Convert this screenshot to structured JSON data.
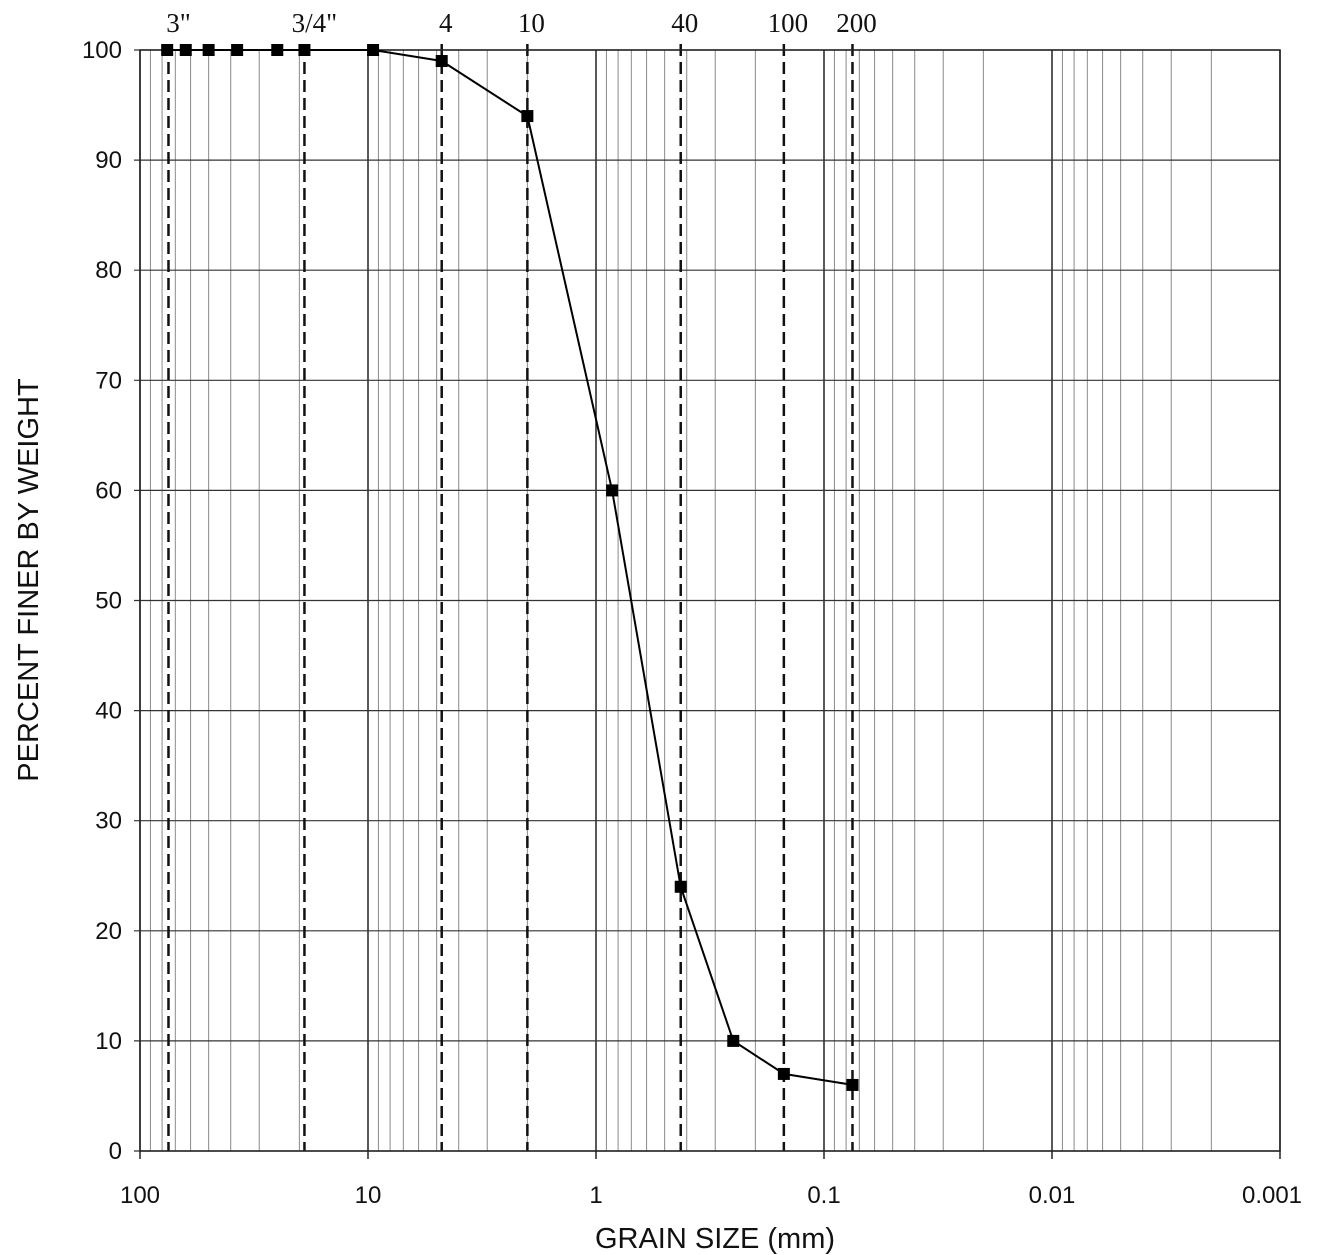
{
  "chart_data": {
    "type": "line",
    "title": "",
    "xlabel": "GRAIN SIZE (mm)",
    "ylabel": "PERCENT FINER BY WEIGHT",
    "x_scale": "log",
    "x_reversed": true,
    "xlim": [
      100,
      0.001
    ],
    "ylim": [
      0,
      100
    ],
    "x_ticks": [
      {
        "value": 100,
        "label": "100"
      },
      {
        "value": 10,
        "label": "10"
      },
      {
        "value": 1,
        "label": "1"
      },
      {
        "value": 0.1,
        "label": "0.1"
      },
      {
        "value": 0.01,
        "label": "0.01"
      },
      {
        "value": 0.001,
        "label": "0.001"
      }
    ],
    "y_ticks": [
      0,
      10,
      20,
      30,
      40,
      50,
      60,
      70,
      80,
      90,
      100
    ],
    "grid": true,
    "sieves": [
      {
        "label": "3\"",
        "size": 75
      },
      {
        "label": "3/4\"",
        "size": 19
      },
      {
        "label": "4",
        "size": 4.75
      },
      {
        "label": "10",
        "size": 2.0
      },
      {
        "label": "40",
        "size": 0.425
      },
      {
        "label": "100",
        "size": 0.15
      },
      {
        "label": "200",
        "size": 0.075
      }
    ],
    "series": [
      {
        "x": [
          76,
          63,
          50,
          37.5,
          25,
          19,
          9.5,
          4.75,
          2.0,
          0.85,
          0.425,
          0.25,
          0.15,
          0.075
        ],
        "y": [
          100,
          100,
          100,
          100,
          100,
          100,
          100,
          99,
          94,
          60,
          24,
          10,
          7,
          6
        ]
      }
    ]
  }
}
